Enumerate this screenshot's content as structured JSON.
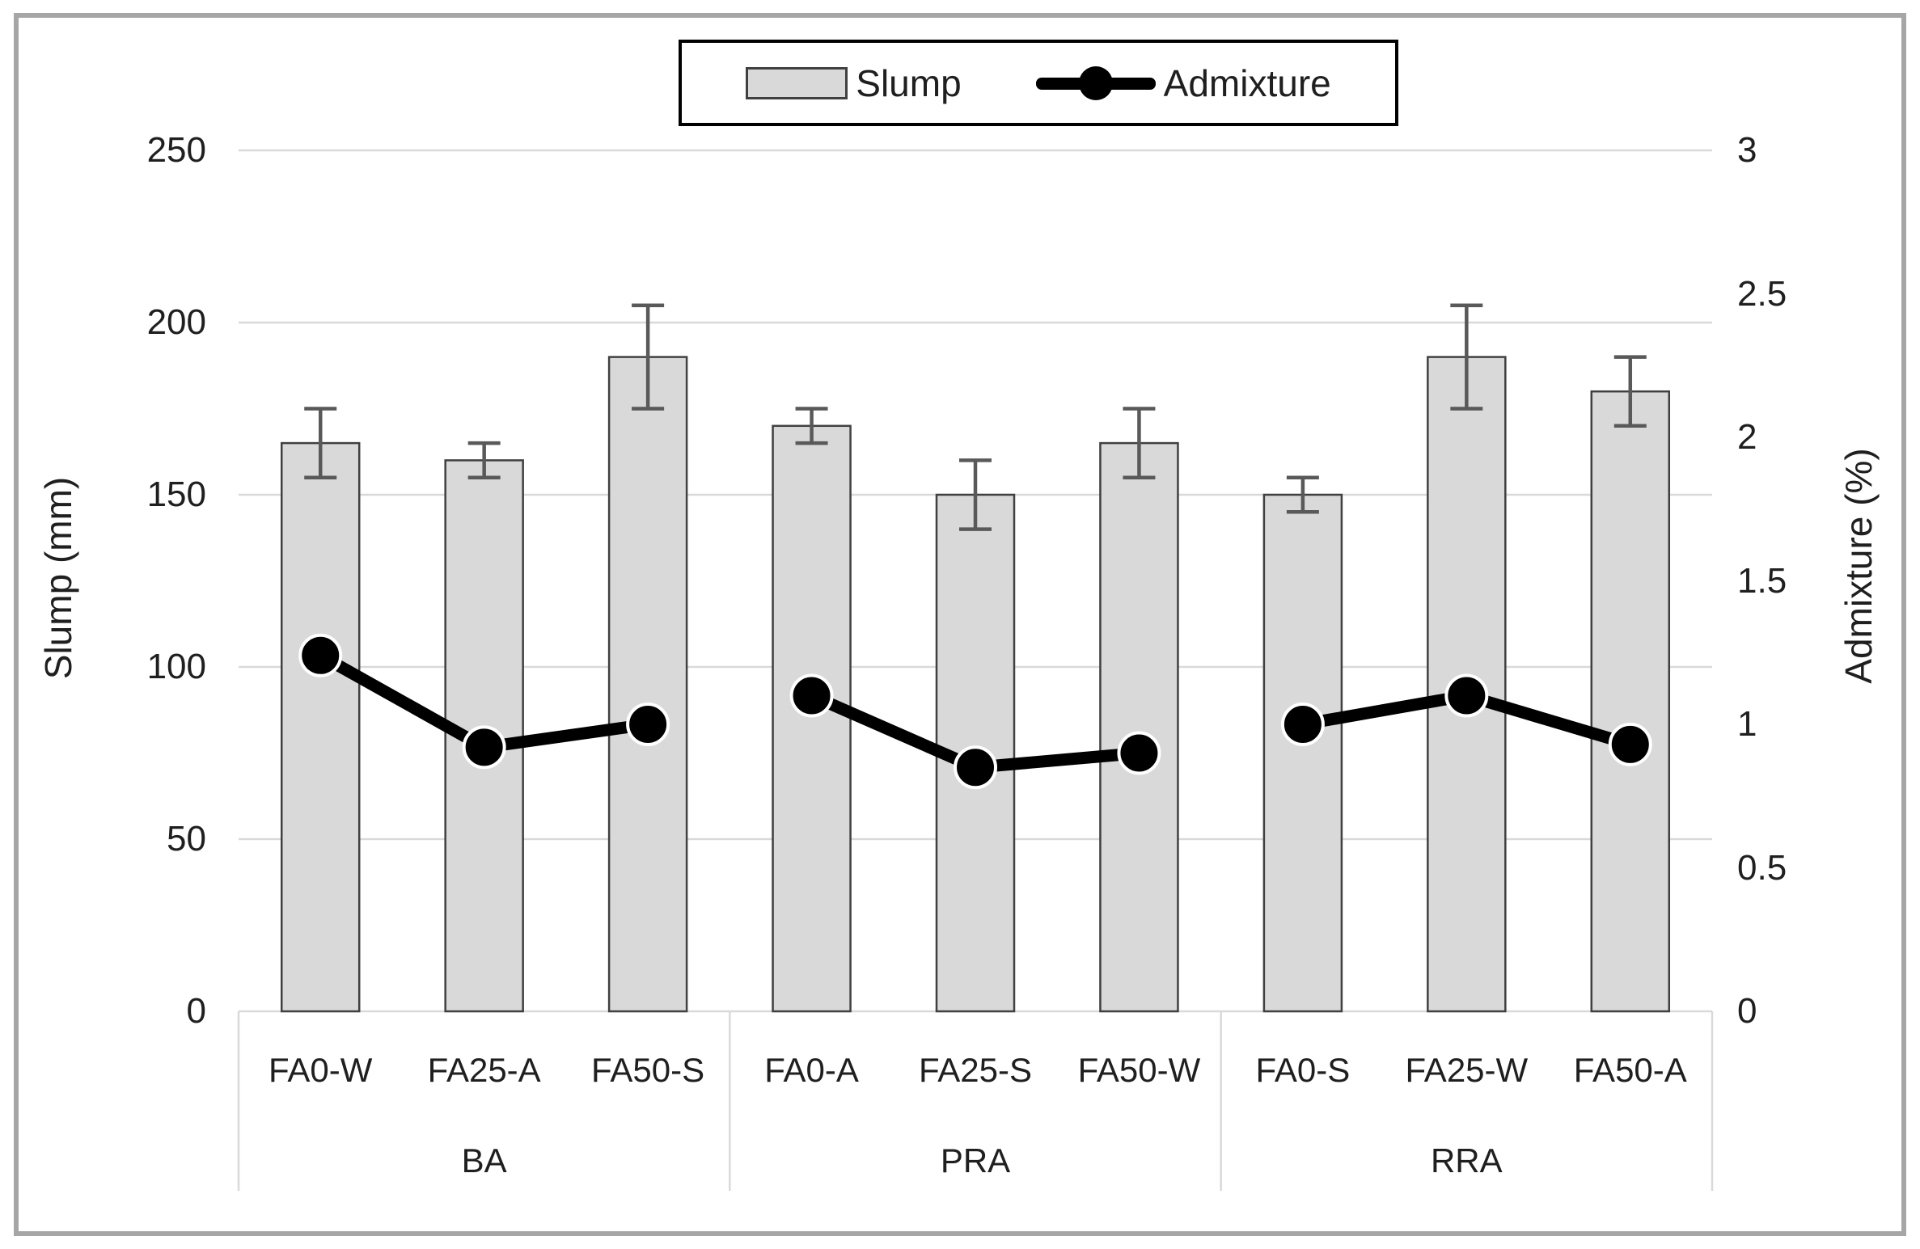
{
  "legend": {
    "slump_label": "Slump",
    "admixture_label": "Admixture"
  },
  "chart_data": {
    "type": "bar+line",
    "categories": [
      "FA0-W",
      "FA25-A",
      "FA50-S",
      "FA0-A",
      "FA25-S",
      "FA50-W",
      "FA0-S",
      "FA25-W",
      "FA50-A"
    ],
    "group_labels": [
      "BA",
      "PRA",
      "RRA"
    ],
    "categories_per_group": 3,
    "series": [
      {
        "name": "Slump",
        "type": "bar",
        "axis": "left",
        "values": [
          165,
          160,
          190,
          170,
          150,
          165,
          150,
          190,
          180
        ],
        "error_bars": [
          10,
          5,
          15,
          5,
          10,
          10,
          5,
          15,
          10
        ]
      },
      {
        "name": "Admixture",
        "type": "line",
        "axis": "right",
        "values": [
          1.24,
          0.92,
          1.0,
          1.1,
          0.85,
          0.9,
          1.0,
          1.1,
          0.93
        ]
      }
    ],
    "left_axis": {
      "label": "Slump (mm)",
      "min": 0,
      "max": 250,
      "ticks": [
        250,
        200,
        150,
        100,
        50,
        0
      ]
    },
    "right_axis": {
      "label": "Admixture (%)",
      "min": 0,
      "max": 3,
      "ticks": [
        3,
        2.5,
        2,
        1.5,
        1,
        0.5,
        0
      ]
    },
    "grid": true,
    "legend_position": "top-center",
    "colors": {
      "bar_fill": "#d9d9d9",
      "bar_border": "#404040",
      "error_bar": "#595959",
      "line": "#000000",
      "marker_ring": "#ffffff",
      "gridline": "#d9d9d9",
      "text": "#1f1f1f",
      "frame_border": "#a6a6a6",
      "legend_border": "#000000"
    }
  }
}
